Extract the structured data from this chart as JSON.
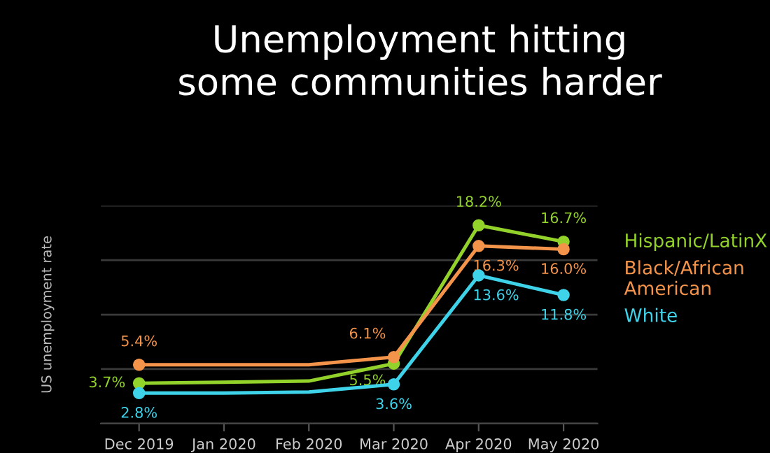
{
  "chart_data": {
    "type": "line",
    "title": "Unemployment hitting\nsome communities harder",
    "ylabel": "US unemployment rate",
    "categories": [
      "Dec 2019",
      "Jan 2020",
      "Feb 2020",
      "Mar 2020",
      "Apr 2020",
      "May 2020"
    ],
    "series": [
      {
        "name": "Hispanic/LatinX",
        "color": "#92d22a",
        "values": [
          3.7,
          3.8,
          3.9,
          5.5,
          18.2,
          16.7
        ],
        "value_labels": [
          "3.7%",
          null,
          null,
          "5.5%",
          "18.2%",
          "16.7%"
        ]
      },
      {
        "name": "Black/African\nAmerican",
        "color": "#f4934a",
        "values": [
          5.4,
          5.4,
          5.4,
          6.1,
          16.3,
          16.0
        ],
        "value_labels": [
          "5.4%",
          null,
          null,
          "6.1%",
          "16.3%",
          "16.0%"
        ]
      },
      {
        "name": "White",
        "color": "#3fd3ea",
        "values": [
          2.8,
          2.8,
          2.9,
          3.6,
          13.6,
          11.8
        ],
        "value_labels": [
          "2.8%",
          null,
          null,
          "3.6%",
          "13.6%",
          "11.8%"
        ]
      }
    ],
    "ylim": [
      0,
      20
    ],
    "yticks": [
      {
        "value": 0,
        "label": null
      },
      {
        "value": 5,
        "label": null
      },
      {
        "value": 10,
        "label": null
      },
      {
        "value": 15,
        "label": null
      },
      {
        "value": 20,
        "label": null
      }
    ],
    "tick_labels": "x",
    "grid": "y",
    "legend": "right",
    "marker": "circle",
    "line_style": "solid"
  }
}
